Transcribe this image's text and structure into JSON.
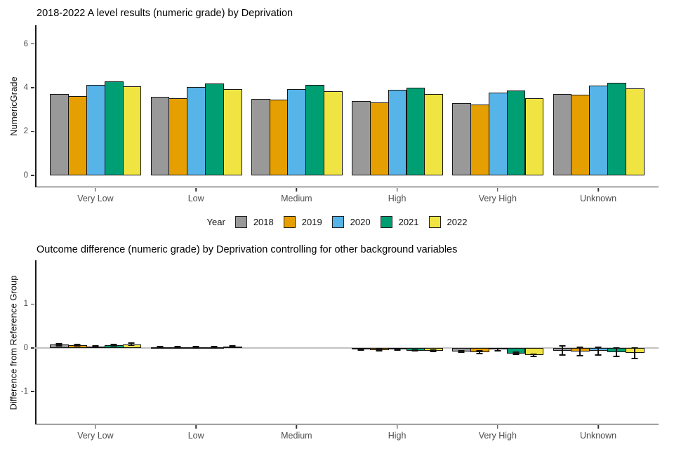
{
  "figure": {
    "background": "#FFFFFF"
  },
  "legend": {
    "title": "Year",
    "entries": [
      {
        "label": "2018",
        "color": "#999999"
      },
      {
        "label": "2019",
        "color": "#E69F00"
      },
      {
        "label": "2020",
        "color": "#56B4E9"
      },
      {
        "label": "2021",
        "color": "#009E73"
      },
      {
        "label": "2022",
        "color": "#F0E442"
      }
    ]
  },
  "chart_data": [
    {
      "type": "bar",
      "title": "2018-2022 A level results (numeric grade) by Deprivation",
      "xlabel": "",
      "ylabel": "NumericGrade",
      "categories": [
        "Very Low",
        "Low",
        "Medium",
        "High",
        "Very High",
        "Unknown"
      ],
      "yticks": [
        0,
        2,
        4,
        6
      ],
      "ylim": [
        -0.55,
        6.85
      ],
      "grid": false,
      "legend_position": "bottom",
      "series": [
        {
          "name": "2018",
          "color": "#999999",
          "values": [
            3.7,
            3.58,
            3.5,
            3.4,
            3.28,
            3.7
          ]
        },
        {
          "name": "2019",
          "color": "#E69F00",
          "values": [
            3.63,
            3.52,
            3.45,
            3.34,
            3.22,
            3.67
          ]
        },
        {
          "name": "2020",
          "color": "#56B4E9",
          "values": [
            4.12,
            4.03,
            3.95,
            3.9,
            3.76,
            4.1
          ]
        },
        {
          "name": "2021",
          "color": "#009E73",
          "values": [
            4.3,
            4.18,
            4.12,
            4.0,
            3.86,
            4.22
          ]
        },
        {
          "name": "2022",
          "color": "#F0E442",
          "values": [
            4.06,
            3.93,
            3.84,
            3.71,
            3.53,
            3.98
          ]
        }
      ]
    },
    {
      "type": "bar",
      "title": "Outcome difference (numeric grade) by Deprivation controlling for other background variables",
      "xlabel": "",
      "ylabel": "Difference from Reference Group",
      "categories": [
        "Very Low",
        "Low",
        "Medium",
        "High",
        "Very High",
        "Unknown"
      ],
      "yticks": [
        1,
        0,
        -1
      ],
      "ylim": [
        -1.75,
        2.0
      ],
      "grid": false,
      "zero_line": true,
      "reference_category": "Medium",
      "series": [
        {
          "name": "2018",
          "color": "#999999",
          "values": [
            0.07,
            0.02,
            null,
            -0.04,
            -0.08,
            -0.06
          ],
          "errors": [
            0.02,
            0.015,
            null,
            0.015,
            0.02,
            0.1
          ]
        },
        {
          "name": "2019",
          "color": "#E69F00",
          "values": [
            0.06,
            0.015,
            null,
            -0.05,
            -0.1,
            -0.08
          ],
          "errors": [
            0.02,
            0.015,
            null,
            0.015,
            0.025,
            0.1
          ]
        },
        {
          "name": "2020",
          "color": "#56B4E9",
          "values": [
            0.03,
            0.01,
            null,
            -0.03,
            -0.04,
            -0.07
          ],
          "errors": [
            0.02,
            0.015,
            null,
            0.015,
            0.02,
            0.09
          ]
        },
        {
          "name": "2021",
          "color": "#009E73",
          "values": [
            0.06,
            0.02,
            null,
            -0.06,
            -0.13,
            -0.1
          ],
          "errors": [
            0.02,
            0.015,
            null,
            0.015,
            0.025,
            0.1
          ]
        },
        {
          "name": "2022",
          "color": "#F0E442",
          "values": [
            0.08,
            0.03,
            null,
            -0.07,
            -0.17,
            -0.12
          ],
          "errors": [
            0.025,
            0.02,
            null,
            0.02,
            0.03,
            0.12
          ]
        }
      ]
    }
  ]
}
